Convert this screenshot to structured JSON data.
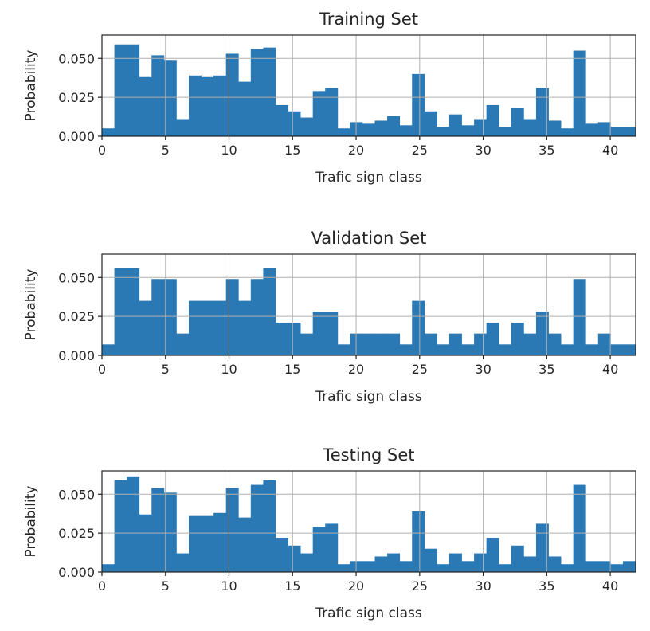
{
  "chart_data": [
    {
      "type": "bar",
      "title": "Training Set",
      "xlabel": "Trafic sign class",
      "ylabel": "Probability",
      "xlim": [
        0,
        42
      ],
      "ylim": [
        0,
        0.065
      ],
      "grid": true,
      "bin_edges": [
        0,
        0.976,
        1.952,
        2.928,
        3.904,
        4.88,
        5.856,
        6.832,
        7.808,
        8.784,
        9.76,
        10.736,
        11.712,
        12.688,
        13.664,
        14.64,
        15.616,
        16.592,
        17.568,
        18.544,
        19.52,
        20.496,
        21.472,
        22.448,
        23.424,
        24.4,
        25.376,
        26.352,
        27.328,
        28.304,
        29.28,
        30.256,
        31.232,
        32.208,
        33.184,
        34.16,
        35.136,
        36.112,
        37.088,
        38.064,
        39.04,
        40.016,
        40.992,
        42
      ],
      "values": [
        0.005,
        0.059,
        0.059,
        0.038,
        0.052,
        0.049,
        0.011,
        0.039,
        0.038,
        0.039,
        0.053,
        0.035,
        0.056,
        0.057,
        0.02,
        0.016,
        0.012,
        0.029,
        0.031,
        0.005,
        0.009,
        0.008,
        0.01,
        0.013,
        0.007,
        0.04,
        0.016,
        0.006,
        0.014,
        0.007,
        0.011,
        0.02,
        0.006,
        0.018,
        0.011,
        0.031,
        0.01,
        0.005,
        0.055,
        0.008,
        0.009,
        0.006,
        0.006
      ],
      "xticks": [
        0,
        5,
        10,
        15,
        20,
        25,
        30,
        35,
        40
      ],
      "xtick_labels": [
        "0",
        "5",
        "10",
        "15",
        "20",
        "25",
        "30",
        "35",
        "40"
      ],
      "yticks": [
        0,
        0.025,
        0.05
      ],
      "ytick_labels": [
        "0.000",
        "0.025",
        "0.050"
      ]
    },
    {
      "type": "bar",
      "title": "Validation Set",
      "xlabel": "Trafic sign class",
      "ylabel": "Probability",
      "xlim": [
        0,
        42
      ],
      "ylim": [
        0,
        0.065
      ],
      "grid": true,
      "bin_edges": [
        0,
        0.976,
        1.952,
        2.928,
        3.904,
        4.88,
        5.856,
        6.832,
        7.808,
        8.784,
        9.76,
        10.736,
        11.712,
        12.688,
        13.664,
        14.64,
        15.616,
        16.592,
        17.568,
        18.544,
        19.52,
        20.496,
        21.472,
        22.448,
        23.424,
        24.4,
        25.376,
        26.352,
        27.328,
        28.304,
        29.28,
        30.256,
        31.232,
        32.208,
        33.184,
        34.16,
        35.136,
        36.112,
        37.088,
        38.064,
        39.04,
        40.016,
        40.992,
        42
      ],
      "values": [
        0.007,
        0.056,
        0.056,
        0.035,
        0.049,
        0.049,
        0.014,
        0.035,
        0.035,
        0.035,
        0.049,
        0.035,
        0.049,
        0.056,
        0.021,
        0.021,
        0.014,
        0.028,
        0.028,
        0.007,
        0.014,
        0.014,
        0.014,
        0.014,
        0.007,
        0.035,
        0.014,
        0.007,
        0.014,
        0.007,
        0.014,
        0.021,
        0.007,
        0.021,
        0.014,
        0.028,
        0.014,
        0.007,
        0.049,
        0.007,
        0.014,
        0.007,
        0.007
      ],
      "xticks": [
        0,
        5,
        10,
        15,
        20,
        25,
        30,
        35,
        40
      ],
      "xtick_labels": [
        "0",
        "5",
        "10",
        "15",
        "20",
        "25",
        "30",
        "35",
        "40"
      ],
      "yticks": [
        0,
        0.025,
        0.05
      ],
      "ytick_labels": [
        "0.000",
        "0.025",
        "0.050"
      ]
    },
    {
      "type": "bar",
      "title": "Testing Set",
      "xlabel": "Trafic sign class",
      "ylabel": "Probability",
      "xlim": [
        0,
        42
      ],
      "ylim": [
        0,
        0.065
      ],
      "grid": true,
      "bin_edges": [
        0,
        0.976,
        1.952,
        2.928,
        3.904,
        4.88,
        5.856,
        6.832,
        7.808,
        8.784,
        9.76,
        10.736,
        11.712,
        12.688,
        13.664,
        14.64,
        15.616,
        16.592,
        17.568,
        18.544,
        19.52,
        20.496,
        21.472,
        22.448,
        23.424,
        24.4,
        25.376,
        26.352,
        27.328,
        28.304,
        29.28,
        30.256,
        31.232,
        32.208,
        33.184,
        34.16,
        35.136,
        36.112,
        37.088,
        38.064,
        39.04,
        40.016,
        40.992,
        42
      ],
      "values": [
        0.005,
        0.059,
        0.061,
        0.037,
        0.054,
        0.051,
        0.012,
        0.036,
        0.036,
        0.038,
        0.054,
        0.035,
        0.056,
        0.059,
        0.022,
        0.017,
        0.012,
        0.029,
        0.031,
        0.005,
        0.007,
        0.007,
        0.01,
        0.012,
        0.007,
        0.039,
        0.015,
        0.005,
        0.012,
        0.007,
        0.012,
        0.022,
        0.005,
        0.017,
        0.01,
        0.031,
        0.01,
        0.005,
        0.056,
        0.007,
        0.007,
        0.005,
        0.007
      ],
      "xticks": [
        0,
        5,
        10,
        15,
        20,
        25,
        30,
        35,
        40
      ],
      "xtick_labels": [
        "0",
        "5",
        "10",
        "15",
        "20",
        "25",
        "30",
        "35",
        "40"
      ],
      "yticks": [
        0,
        0.025,
        0.05
      ],
      "ytick_labels": [
        "0.000",
        "0.025",
        "0.050"
      ]
    }
  ]
}
